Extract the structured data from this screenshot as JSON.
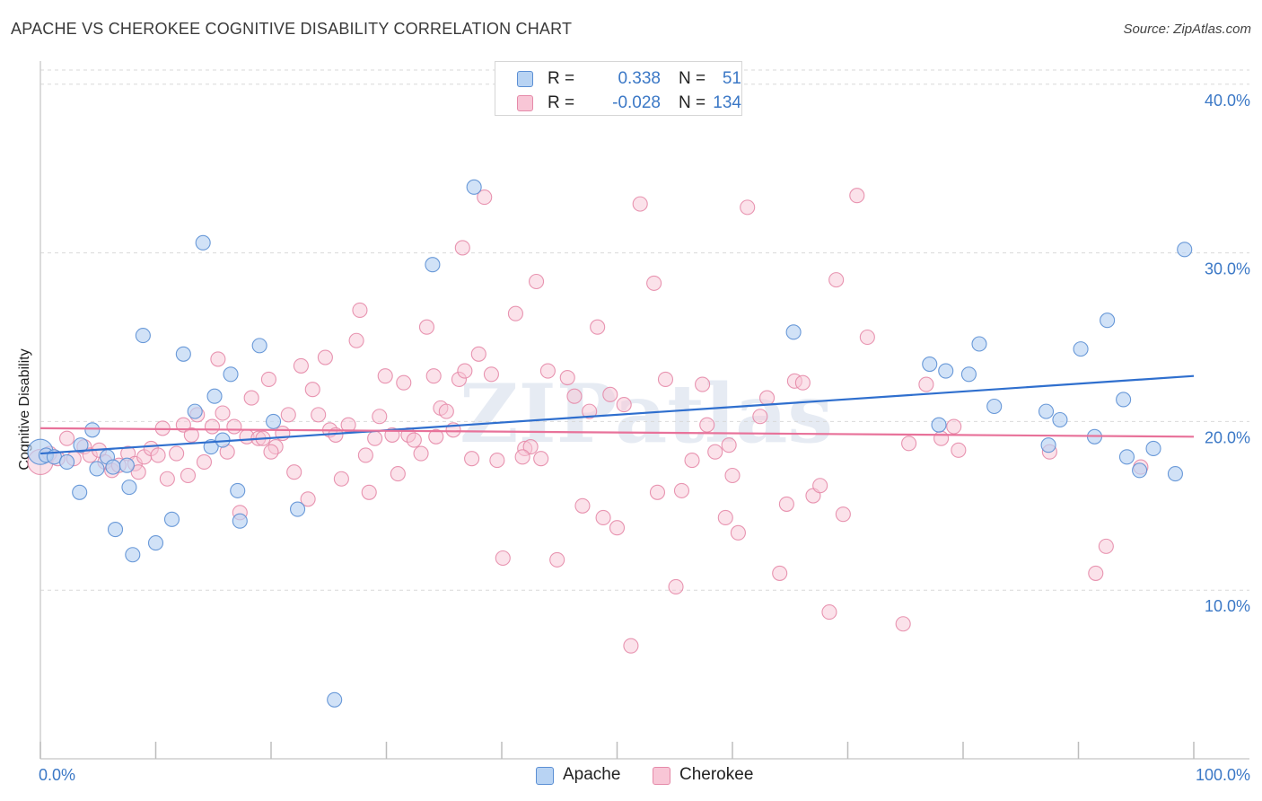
{
  "title": "APACHE VS CHEROKEE COGNITIVE DISABILITY CORRELATION CHART",
  "source": "Source: ZipAtlas.com",
  "watermark": "ZIPatlas",
  "legend": {
    "rows": [
      {
        "r_label": "R =",
        "r_value": "0.338",
        "n_label": "N =",
        "n_value": "51"
      },
      {
        "r_label": "R =",
        "r_value": "-0.028",
        "n_label": "N =",
        "n_value": "134"
      }
    ]
  },
  "colors": {
    "apache_fill": "#b8d3f3",
    "apache_stroke": "#5b8fd4",
    "apache_line": "#2f6fce",
    "cherokee_fill": "#f8c6d6",
    "cherokee_stroke": "#e58aa9",
    "cherokee_line": "#e8729a",
    "axis_text": "#3b78c6",
    "grid": "#d9d9d9"
  },
  "chart_data": {
    "type": "scatter",
    "title": "APACHE VS CHEROKEE COGNITIVE DISABILITY CORRELATION CHART",
    "xlabel": "",
    "ylabel": "Cognitive Disability",
    "xlim": [
      0,
      100
    ],
    "ylim": [
      0,
      41
    ],
    "x_tick_labels": [
      "0.0%",
      "100.0%"
    ],
    "y_ticks": [
      10,
      20,
      30,
      40
    ],
    "y_tick_labels": [
      "10.0%",
      "20.0%",
      "30.0%",
      "40.0%"
    ],
    "series": [
      {
        "name": "Apache",
        "R": 0.338,
        "N": 51,
        "trend": {
          "x": [
            0,
            100
          ],
          "y": [
            18.1,
            22.7
          ]
        },
        "points": [
          [
            0.0,
            18.2
          ],
          [
            0.5,
            18.0
          ],
          [
            1.2,
            17.9
          ],
          [
            2.3,
            17.6
          ],
          [
            3.4,
            15.8
          ],
          [
            3.5,
            18.6
          ],
          [
            4.5,
            19.5
          ],
          [
            4.9,
            17.2
          ],
          [
            5.8,
            17.9
          ],
          [
            6.3,
            17.3
          ],
          [
            6.5,
            13.6
          ],
          [
            7.5,
            17.4
          ],
          [
            7.7,
            16.1
          ],
          [
            8.0,
            12.1
          ],
          [
            8.9,
            25.1
          ],
          [
            10.0,
            12.8
          ],
          [
            11.4,
            14.2
          ],
          [
            12.4,
            24.0
          ],
          [
            13.4,
            20.6
          ],
          [
            14.1,
            30.6
          ],
          [
            14.8,
            18.5
          ],
          [
            15.1,
            21.5
          ],
          [
            15.8,
            18.9
          ],
          [
            16.5,
            22.8
          ],
          [
            17.1,
            15.9
          ],
          [
            17.3,
            14.1
          ],
          [
            19.0,
            24.5
          ],
          [
            20.2,
            20.0
          ],
          [
            22.3,
            14.8
          ],
          [
            25.5,
            3.5
          ],
          [
            34.0,
            29.3
          ],
          [
            37.6,
            33.9
          ],
          [
            65.3,
            25.3
          ],
          [
            77.1,
            23.4
          ],
          [
            77.9,
            19.8
          ],
          [
            78.5,
            23.0
          ],
          [
            80.5,
            22.8
          ],
          [
            81.4,
            24.6
          ],
          [
            82.7,
            20.9
          ],
          [
            87.2,
            20.6
          ],
          [
            87.4,
            18.6
          ],
          [
            88.4,
            20.1
          ],
          [
            90.2,
            24.3
          ],
          [
            91.4,
            19.1
          ],
          [
            92.5,
            26.0
          ],
          [
            93.9,
            21.3
          ],
          [
            94.2,
            17.9
          ],
          [
            95.3,
            17.1
          ],
          [
            98.4,
            16.9
          ],
          [
            99.2,
            30.2
          ],
          [
            96.5,
            18.4
          ]
        ]
      },
      {
        "name": "Cherokee",
        "R": -0.028,
        "N": 134,
        "trend": {
          "x": [
            0,
            100
          ],
          "y": [
            19.6,
            19.1
          ]
        },
        "points": [
          [
            0.0,
            17.6
          ],
          [
            0.8,
            18.1
          ],
          [
            1.5,
            17.8
          ],
          [
            2.3,
            19.0
          ],
          [
            2.9,
            17.8
          ],
          [
            3.8,
            18.5
          ],
          [
            4.3,
            18.0
          ],
          [
            5.1,
            18.3
          ],
          [
            5.6,
            17.6
          ],
          [
            6.2,
            17.1
          ],
          [
            6.8,
            17.4
          ],
          [
            7.6,
            18.1
          ],
          [
            8.2,
            17.5
          ],
          [
            8.5,
            17.0
          ],
          [
            9.0,
            17.9
          ],
          [
            9.6,
            18.4
          ],
          [
            10.2,
            18.0
          ],
          [
            10.6,
            19.6
          ],
          [
            11.0,
            16.6
          ],
          [
            11.8,
            18.1
          ],
          [
            12.4,
            19.8
          ],
          [
            12.8,
            16.8
          ],
          [
            13.1,
            19.2
          ],
          [
            13.6,
            20.4
          ],
          [
            14.2,
            17.6
          ],
          [
            14.9,
            19.7
          ],
          [
            15.4,
            23.7
          ],
          [
            15.8,
            20.5
          ],
          [
            16.2,
            18.2
          ],
          [
            16.8,
            19.7
          ],
          [
            17.3,
            14.6
          ],
          [
            17.9,
            19.1
          ],
          [
            18.3,
            21.4
          ],
          [
            18.9,
            19.0
          ],
          [
            19.3,
            19.0
          ],
          [
            19.8,
            22.5
          ],
          [
            20.4,
            18.5
          ],
          [
            21.0,
            19.3
          ],
          [
            21.5,
            20.4
          ],
          [
            22.0,
            17.0
          ],
          [
            22.6,
            23.3
          ],
          [
            23.2,
            15.4
          ],
          [
            23.6,
            21.9
          ],
          [
            24.1,
            20.4
          ],
          [
            24.7,
            23.8
          ],
          [
            25.1,
            19.5
          ],
          [
            25.6,
            19.2
          ],
          [
            26.1,
            16.6
          ],
          [
            26.7,
            19.8
          ],
          [
            27.4,
            24.8
          ],
          [
            27.7,
            26.6
          ],
          [
            28.5,
            15.8
          ],
          [
            29.0,
            19.0
          ],
          [
            29.4,
            20.3
          ],
          [
            29.9,
            22.7
          ],
          [
            30.5,
            19.2
          ],
          [
            31.0,
            16.9
          ],
          [
            31.5,
            22.3
          ],
          [
            31.9,
            19.2
          ],
          [
            32.4,
            18.9
          ],
          [
            33.0,
            18.1
          ],
          [
            33.5,
            25.6
          ],
          [
            34.1,
            22.7
          ],
          [
            34.7,
            20.8
          ],
          [
            35.2,
            20.6
          ],
          [
            35.8,
            19.5
          ],
          [
            36.3,
            22.5
          ],
          [
            36.8,
            23.0
          ],
          [
            37.4,
            17.8
          ],
          [
            38.0,
            24.0
          ],
          [
            38.5,
            33.3
          ],
          [
            39.1,
            22.8
          ],
          [
            39.6,
            17.7
          ],
          [
            40.1,
            11.9
          ],
          [
            41.2,
            26.4
          ],
          [
            42.0,
            18.4
          ],
          [
            42.5,
            18.5
          ],
          [
            43.0,
            28.3
          ],
          [
            43.4,
            17.8
          ],
          [
            44.0,
            23.0
          ],
          [
            44.8,
            11.8
          ],
          [
            45.7,
            22.6
          ],
          [
            46.3,
            21.5
          ],
          [
            47.0,
            15.0
          ],
          [
            47.6,
            20.6
          ],
          [
            48.3,
            25.6
          ],
          [
            48.8,
            14.3
          ],
          [
            49.4,
            21.6
          ],
          [
            50.0,
            13.7
          ],
          [
            50.6,
            21.0
          ],
          [
            51.2,
            6.7
          ],
          [
            52.0,
            32.9
          ],
          [
            53.2,
            28.2
          ],
          [
            53.5,
            15.8
          ],
          [
            54.2,
            22.5
          ],
          [
            55.1,
            10.2
          ],
          [
            55.6,
            15.9
          ],
          [
            56.5,
            17.7
          ],
          [
            57.4,
            22.2
          ],
          [
            57.8,
            19.8
          ],
          [
            58.5,
            18.2
          ],
          [
            59.4,
            14.3
          ],
          [
            60.0,
            16.8
          ],
          [
            60.5,
            13.4
          ],
          [
            61.3,
            32.7
          ],
          [
            62.4,
            20.3
          ],
          [
            63.0,
            21.4
          ],
          [
            64.1,
            11.0
          ],
          [
            64.7,
            15.1
          ],
          [
            65.4,
            22.4
          ],
          [
            66.1,
            22.3
          ],
          [
            67.0,
            15.6
          ],
          [
            67.6,
            16.2
          ],
          [
            68.4,
            8.7
          ],
          [
            69.0,
            28.4
          ],
          [
            69.6,
            14.5
          ],
          [
            70.8,
            33.4
          ],
          [
            71.7,
            25.0
          ],
          [
            74.8,
            8.0
          ],
          [
            75.3,
            18.7
          ],
          [
            76.8,
            22.2
          ],
          [
            78.1,
            19.0
          ],
          [
            79.2,
            19.7
          ],
          [
            79.6,
            18.3
          ],
          [
            87.5,
            18.2
          ],
          [
            91.5,
            11.0
          ],
          [
            92.4,
            12.6
          ],
          [
            95.4,
            17.3
          ],
          [
            59.7,
            18.6
          ],
          [
            41.8,
            17.9
          ],
          [
            36.6,
            30.3
          ],
          [
            34.3,
            19.1
          ],
          [
            28.2,
            18.0
          ],
          [
            20.0,
            18.2
          ]
        ]
      }
    ]
  },
  "bottom_legend": {
    "items": [
      "Apache",
      "Cherokee"
    ]
  }
}
